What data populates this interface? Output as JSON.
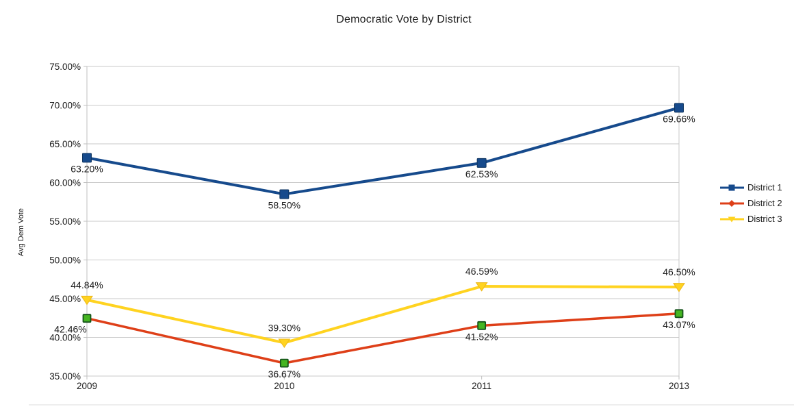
{
  "chart": {
    "title": "Democratic Vote by District",
    "y_axis_title": "Avg Dem Vote"
  },
  "chart_data": {
    "type": "line",
    "title": "Democratic Vote by District",
    "ylabel": "Avg Dem Vote",
    "xlabel": "",
    "categories": [
      "2009",
      "2010",
      "2011",
      "2013"
    ],
    "series": [
      {
        "name": "District 1",
        "values": [
          63.2,
          58.5,
          62.53,
          69.66
        ],
        "labels": [
          "63.20%",
          "58.50%",
          "62.53%",
          "69.66%"
        ],
        "color": "#164A8C",
        "legend_marker": "square",
        "point_marker": "square",
        "marker_fill": "#164A8C",
        "marker_stroke": "#0F3560",
        "label_side": "below"
      },
      {
        "name": "District 2",
        "values": [
          42.46,
          36.67,
          41.52,
          43.07
        ],
        "labels": [
          "42.46%",
          "36.67%",
          "41.52%",
          "43.07%"
        ],
        "color": "#DE3F18",
        "legend_marker": "diamond",
        "point_marker": "square",
        "marker_fill": "#45B521",
        "marker_stroke": "#14521A",
        "label_side": "below"
      },
      {
        "name": "District 3",
        "values": [
          44.84,
          39.3,
          46.59,
          46.5
        ],
        "labels": [
          "44.84%",
          "39.30%",
          "46.59%",
          "46.50%"
        ],
        "color": "#FFD320",
        "legend_marker": "triangle-down",
        "point_marker": "triangle-down",
        "marker_fill": "#FFD320",
        "marker_stroke": "#EDB71C",
        "label_side": "above"
      }
    ],
    "ylim": [
      35,
      75
    ],
    "y_tick_step": 5,
    "y_tick_labels": [
      "35.00%",
      "40.00%",
      "45.00%",
      "50.00%",
      "55.00%",
      "60.00%",
      "65.00%",
      "70.00%",
      "75.00%"
    ],
    "grid": "horizontal",
    "legend_position": "right",
    "data_labels": true,
    "colors": {
      "gridline": "#C9C9C9",
      "axis": "#BFBFBF",
      "text": "#1A1A1A",
      "frame": "#DEDEDE"
    }
  }
}
